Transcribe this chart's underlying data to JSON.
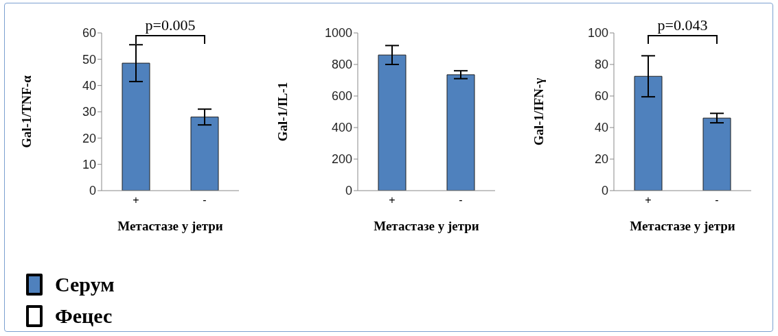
{
  "chart_data": [
    {
      "type": "bar",
      "ylabel": "Gal-1/TNF-α",
      "xlabel": "Метастазе у јетри",
      "categories": [
        "+",
        "-"
      ],
      "ylim": [
        0,
        60
      ],
      "yticks": [
        0,
        10,
        20,
        30,
        40,
        50,
        60
      ],
      "grid": false,
      "legend": "bottom left",
      "annotations": [
        "p=0.005"
      ],
      "series": [
        {
          "name": "Серум",
          "color": "#4f81bd",
          "values": [
            48.5,
            28
          ],
          "errors": [
            7,
            3
          ]
        },
        {
          "name": "Фецес",
          "color": "#ffffff",
          "values": [
            null,
            null
          ]
        }
      ]
    },
    {
      "type": "bar",
      "ylabel": "Gal-1/IL-1",
      "xlabel": "Метастазе у јетри",
      "categories": [
        "+",
        "-"
      ],
      "ylim": [
        0,
        1000
      ],
      "yticks": [
        0,
        200,
        400,
        600,
        800,
        1000
      ],
      "grid": false,
      "series": [
        {
          "color": "#4f81bd",
          "values": [
            860,
            735
          ],
          "errors": [
            60,
            25
          ]
        }
      ]
    },
    {
      "type": "bar",
      "ylabel": "Gal-1/IFN-γ",
      "xlabel": "Метастазе у јетри",
      "categories": [
        "+",
        "-"
      ],
      "ylim": [
        0,
        100
      ],
      "yticks": [
        0,
        20,
        40,
        60,
        80,
        100
      ],
      "grid": false,
      "annotations": [
        "p=0.043"
      ],
      "series": [
        {
          "color": "#4f81bd",
          "values": [
            72.5,
            46
          ],
          "errors": [
            13,
            3
          ]
        }
      ]
    }
  ]
}
